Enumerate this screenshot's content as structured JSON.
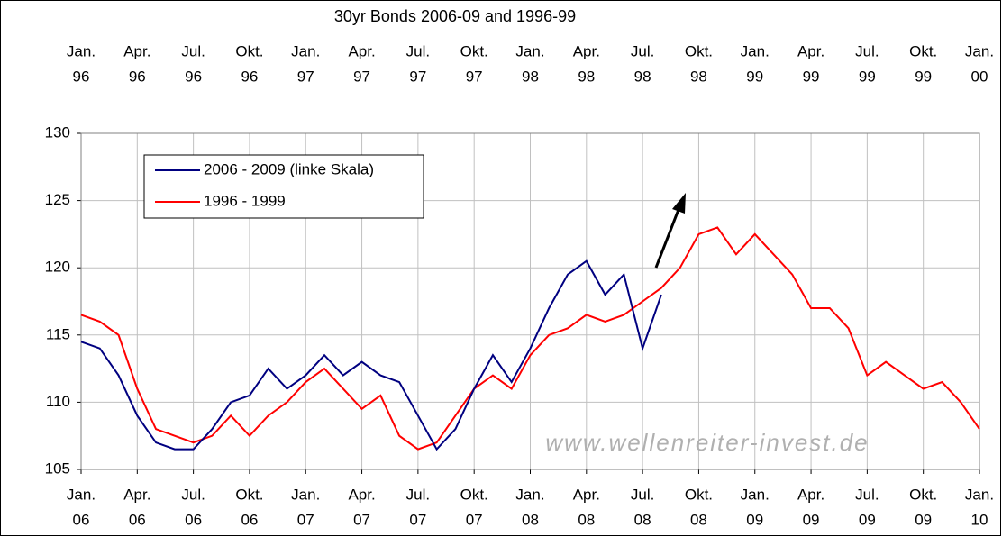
{
  "chart_data": {
    "type": "line",
    "title": "30yr Bonds 2006-09 and 1996-99",
    "watermark": "www.wellenreiter-invest.de",
    "x": [
      "2006-01",
      "2006-02",
      "2006-03",
      "2006-04",
      "2006-05",
      "2006-06",
      "2006-07",
      "2006-08",
      "2006-09",
      "2006-10",
      "2006-11",
      "2006-12",
      "2007-01",
      "2007-02",
      "2007-03",
      "2007-04",
      "2007-05",
      "2007-06",
      "2007-07",
      "2007-08",
      "2007-09",
      "2007-10",
      "2007-11",
      "2007-12",
      "2008-01",
      "2008-02",
      "2008-03",
      "2008-04",
      "2008-05",
      "2008-06",
      "2008-07",
      "2008-08",
      "2008-09",
      "2008-10",
      "2008-11",
      "2008-12",
      "2009-01",
      "2009-02",
      "2009-03",
      "2009-04",
      "2009-05",
      "2009-06",
      "2009-07",
      "2009-08",
      "2009-09",
      "2009-10",
      "2009-11",
      "2009-12",
      "2010-01"
    ],
    "series": [
      {
        "name": "2006 - 2009 (linke Skala)",
        "color": "#000080",
        "values": [
          114.5,
          114,
          112,
          109,
          107,
          106.5,
          106.5,
          108,
          110,
          110.5,
          112.5,
          111,
          112,
          113.5,
          112,
          113,
          112,
          111.5,
          109,
          106.5,
          108,
          111,
          113.5,
          111.5,
          114,
          117,
          119.5,
          120.5,
          118,
          119.5,
          114,
          118,
          null,
          null,
          null,
          null,
          null,
          null,
          null,
          null,
          null,
          null,
          null,
          null,
          null,
          null,
          null,
          null,
          null
        ]
      },
      {
        "name": "1996 - 1999",
        "color": "#ff0000",
        "values": [
          116.5,
          116,
          115,
          111,
          108,
          107.5,
          107,
          107.5,
          109,
          107.5,
          109,
          110,
          111.5,
          112.5,
          111,
          109.5,
          110.5,
          107.5,
          106.5,
          107,
          109,
          111,
          112,
          111,
          113.5,
          115,
          115.5,
          116.5,
          116,
          116.5,
          117.5,
          118.5,
          120,
          122.5,
          123,
          121,
          122.5,
          121,
          119.5,
          117,
          117,
          115.5,
          112,
          113,
          112,
          111,
          111.5,
          110,
          108
        ]
      }
    ],
    "ylim": [
      105,
      130
    ],
    "yticks": [
      105,
      110,
      115,
      120,
      125,
      130
    ],
    "xticks": [
      {
        "value": "2006-01",
        "label": [
          "Jan.",
          "06"
        ]
      },
      {
        "value": "2006-04",
        "label": [
          "Apr.",
          "06"
        ]
      },
      {
        "value": "2006-07",
        "label": [
          "Jul.",
          "06"
        ]
      },
      {
        "value": "2006-10",
        "label": [
          "Okt.",
          "06"
        ]
      },
      {
        "value": "2007-01",
        "label": [
          "Jan.",
          "07"
        ]
      },
      {
        "value": "2007-04",
        "label": [
          "Apr.",
          "07"
        ]
      },
      {
        "value": "2007-07",
        "label": [
          "Jul.",
          "07"
        ]
      },
      {
        "value": "2007-10",
        "label": [
          "Okt.",
          "07"
        ]
      },
      {
        "value": "2008-01",
        "label": [
          "Jan.",
          "08"
        ]
      },
      {
        "value": "2008-04",
        "label": [
          "Apr.",
          "08"
        ]
      },
      {
        "value": "2008-07",
        "label": [
          "Jul.",
          "08"
        ]
      },
      {
        "value": "2008-10",
        "label": [
          "Okt.",
          "08"
        ]
      },
      {
        "value": "2009-01",
        "label": [
          "Jan.",
          "09"
        ]
      },
      {
        "value": "2009-04",
        "label": [
          "Apr.",
          "09"
        ]
      },
      {
        "value": "2009-07",
        "label": [
          "Jul.",
          "09"
        ]
      },
      {
        "value": "2009-10",
        "label": [
          "Okt.",
          "09"
        ]
      },
      {
        "value": "2010-01",
        "label": [
          "Jan.",
          "10"
        ]
      }
    ],
    "x2ticks": [
      {
        "value": "2006-01",
        "label": [
          "Jan.",
          "96"
        ]
      },
      {
        "value": "2006-04",
        "label": [
          "Apr.",
          "96"
        ]
      },
      {
        "value": "2006-07",
        "label": [
          "Jul.",
          "96"
        ]
      },
      {
        "value": "2006-10",
        "label": [
          "Okt.",
          "96"
        ]
      },
      {
        "value": "2007-01",
        "label": [
          "Jan.",
          "97"
        ]
      },
      {
        "value": "2007-04",
        "label": [
          "Apr.",
          "97"
        ]
      },
      {
        "value": "2007-07",
        "label": [
          "Jul.",
          "97"
        ]
      },
      {
        "value": "2007-10",
        "label": [
          "Okt.",
          "97"
        ]
      },
      {
        "value": "2008-01",
        "label": [
          "Jan.",
          "98"
        ]
      },
      {
        "value": "2008-04",
        "label": [
          "Apr.",
          "98"
        ]
      },
      {
        "value": "2008-07",
        "label": [
          "Jul.",
          "98"
        ]
      },
      {
        "value": "2008-10",
        "label": [
          "Okt.",
          "98"
        ]
      },
      {
        "value": "2009-01",
        "label": [
          "Jan.",
          "99"
        ]
      },
      {
        "value": "2009-04",
        "label": [
          "Apr.",
          "99"
        ]
      },
      {
        "value": "2009-07",
        "label": [
          "Jul.",
          "99"
        ]
      },
      {
        "value": "2009-10",
        "label": [
          "Okt.",
          "99"
        ]
      },
      {
        "value": "2010-01",
        "label": [
          "Jan.",
          "00"
        ]
      }
    ],
    "grid": true,
    "legend": "upper left"
  }
}
